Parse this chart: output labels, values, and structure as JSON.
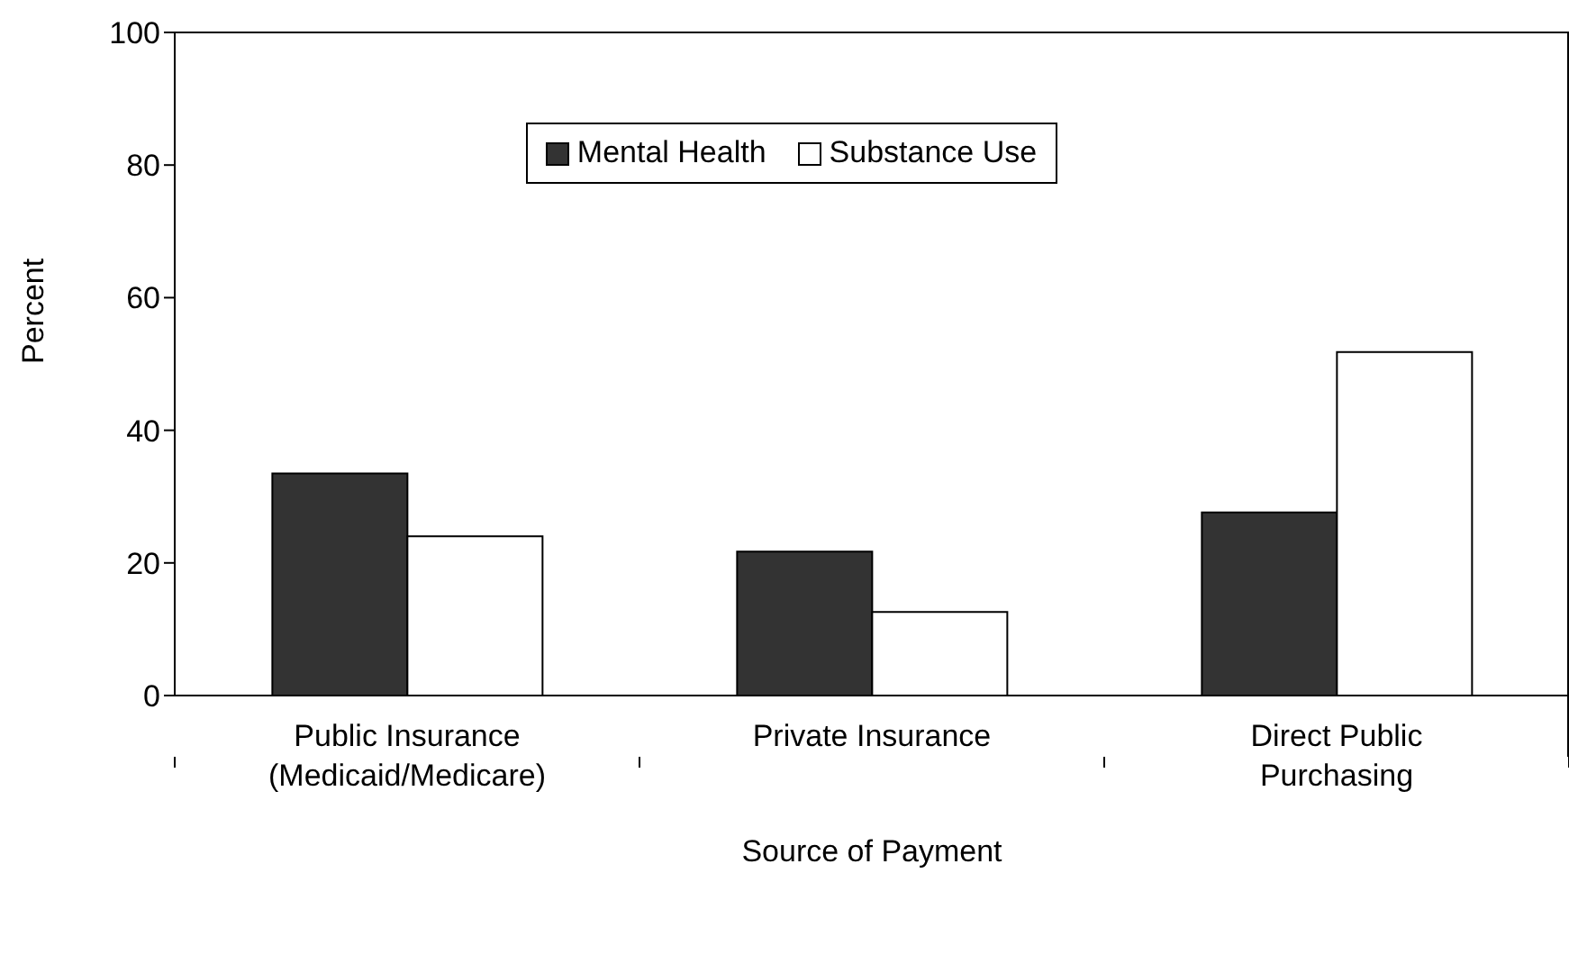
{
  "chart_data": {
    "type": "bar",
    "xlabel": "Source of Payment",
    "ylabel": "Percent",
    "categories": [
      "Public Insurance (Medicaid/Medicare)",
      "Private Insurance",
      "Direct Public Purchasing"
    ],
    "series": [
      {
        "name": "Mental Health",
        "color": "#333333",
        "values": [
          33.5,
          21.7,
          27.6
        ]
      },
      {
        "name": "Substance Use",
        "color": "#ffffff",
        "values": [
          24.0,
          12.6,
          51.8
        ]
      }
    ],
    "ylim": [
      0,
      100
    ],
    "yticks": [
      0,
      20,
      40,
      60,
      80,
      100
    ],
    "grid": false,
    "legend": "top"
  }
}
